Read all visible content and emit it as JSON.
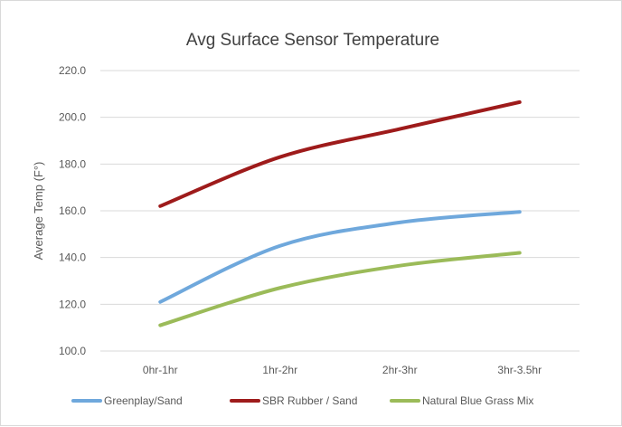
{
  "chart_data": {
    "type": "line",
    "title": "Avg Surface Sensor Temperature",
    "xlabel": "",
    "ylabel": "Average Temp (F°)",
    "categories": [
      "0hr-1hr",
      "1hr-2hr",
      "2hr-3hr",
      "3hr-3.5hr"
    ],
    "ylim": [
      100,
      220
    ],
    "yticks": [
      "100.0",
      "120.0",
      "140.0",
      "160.0",
      "180.0",
      "200.0",
      "220.0"
    ],
    "grid": true,
    "legend_position": "bottom",
    "series": [
      {
        "name": "Greenplay/Sand",
        "color": "#6fa8dc",
        "values": [
          121,
          145,
          155,
          159.5
        ]
      },
      {
        "name": "SBR Rubber / Sand",
        "color": "#9e1b1b",
        "values": [
          162,
          183,
          195,
          206.5
        ]
      },
      {
        "name": "Natural Blue Grass Mix",
        "color": "#9bbb59",
        "values": [
          111,
          127,
          136.5,
          142
        ]
      }
    ]
  }
}
